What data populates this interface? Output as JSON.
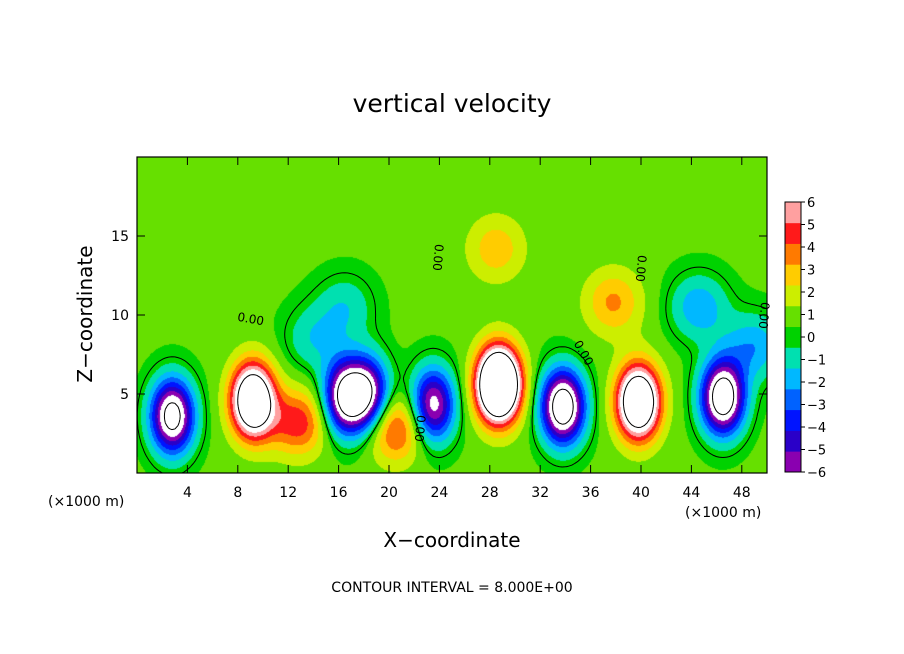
{
  "chart_data": {
    "type": "heatmap",
    "title": "vertical velocity",
    "xlabel": "X−coordinate",
    "ylabel": "Z−coordinate",
    "x_units": "(×1000 m)",
    "x_ticks": [
      4,
      8,
      12,
      16,
      20,
      24,
      28,
      32,
      36,
      40,
      44,
      48
    ],
    "y_ticks": [
      5,
      10,
      15
    ],
    "xlim": [
      0,
      50
    ],
    "ylim": [
      0,
      20
    ],
    "colorbar": {
      "ticks": [
        "6",
        "5",
        "4",
        "3",
        "2",
        "1",
        "0",
        "−1",
        "−2",
        "−3",
        "−4",
        "−5",
        "−6"
      ],
      "range": [
        -6,
        6
      ]
    },
    "contour_labels": [
      "0.00",
      "0.00",
      "0.00",
      "0.00",
      "0.00",
      "0.00"
    ],
    "contour_interval_text": "CONTOUR INTERVAL = 8.000E+00",
    "field_blobs": [
      {
        "x": 2.8,
        "z": 3.6,
        "value": -10
      },
      {
        "x": 9.2,
        "z": 4.6,
        "value": 12
      },
      {
        "x": 12.8,
        "z": 3.2,
        "value": 4.5
      },
      {
        "x": 16.5,
        "z": 4.8,
        "value": -9
      },
      {
        "x": 18.3,
        "z": 5.0,
        "value": -8
      },
      {
        "x": 20.5,
        "z": 2.8,
        "value": 4.5
      },
      {
        "x": 23.5,
        "z": 4.3,
        "value": -8
      },
      {
        "x": 28.7,
        "z": 5.6,
        "value": 16
      },
      {
        "x": 33.8,
        "z": 4.2,
        "value": -11
      },
      {
        "x": 39.8,
        "z": 4.5,
        "value": 12
      },
      {
        "x": 46.5,
        "z": 4.8,
        "value": -11
      },
      {
        "x": 28.5,
        "z": 14.2,
        "value": 2.5
      },
      {
        "x": 37.8,
        "z": 10.8,
        "value": 3
      },
      {
        "x": 44.6,
        "z": 10.5,
        "value": -3
      },
      {
        "x": 16.5,
        "z": 10.5,
        "value": -2
      },
      {
        "x": 14.0,
        "z": 8.5,
        "value": -2
      },
      {
        "x": 49.0,
        "z": 8.0,
        "value": -3
      }
    ]
  }
}
